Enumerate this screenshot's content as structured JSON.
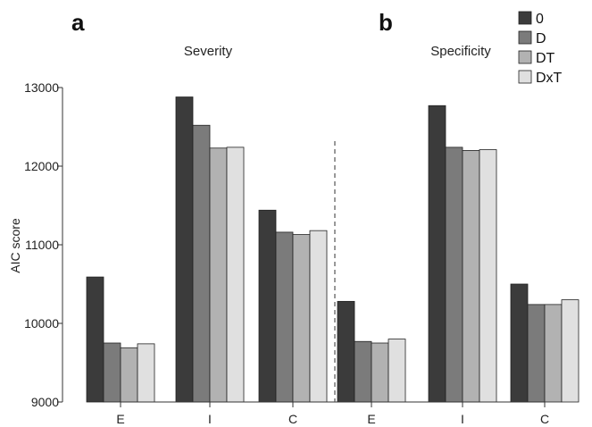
{
  "chart_data": {
    "type": "bar",
    "ylabel": "AIC score",
    "ylim": [
      9000,
      13000
    ],
    "yticks": [
      "9000",
      "10000",
      "11000",
      "12000",
      "13000"
    ],
    "series_colors": [
      "#3b3b3b",
      "#7b7b7b",
      "#b2b2b2",
      "#e0e0e0"
    ],
    "legend": [
      "0",
      "D",
      "DT",
      "DxT"
    ],
    "legend_position": "top-right",
    "divider": "dashed vertical line between panels",
    "panels": [
      {
        "letter": "a",
        "title": "Severity",
        "categories": [
          "E",
          "I",
          "C"
        ],
        "series": [
          {
            "name": "0",
            "values": [
              10590,
              12880,
              11440
            ]
          },
          {
            "name": "D",
            "values": [
              9750,
              12520,
              11160
            ]
          },
          {
            "name": "DT",
            "values": [
              9690,
              12230,
              11130
            ]
          },
          {
            "name": "DxT",
            "values": [
              9740,
              12240,
              11180
            ]
          }
        ]
      },
      {
        "letter": "b",
        "title": "Specificity",
        "categories": [
          "E",
          "I",
          "C"
        ],
        "series": [
          {
            "name": "0",
            "values": [
              10280,
              12770,
              10500
            ]
          },
          {
            "name": "D",
            "values": [
              9770,
              12240,
              10240
            ]
          },
          {
            "name": "DT",
            "values": [
              9750,
              12200,
              10240
            ]
          },
          {
            "name": "DxT",
            "values": [
              9800,
              12210,
              10300
            ]
          }
        ]
      }
    ]
  }
}
